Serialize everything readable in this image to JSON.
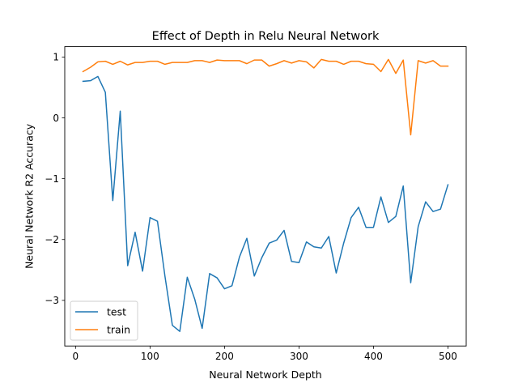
{
  "chart_data": {
    "type": "line",
    "title": "Effect of Depth in Relu Neural Network",
    "xlabel": "Neural Network Depth",
    "ylabel": "Neural Network R2 Accuracy",
    "xlim": [
      -14.5,
      524.5
    ],
    "ylim": [
      -3.75,
      1.17
    ],
    "xticks": [
      0,
      100,
      200,
      300,
      400,
      500
    ],
    "xtick_labels": [
      "0",
      "100",
      "200",
      "300",
      "400",
      "500"
    ],
    "yticks": [
      -3,
      -2,
      -1,
      0,
      1
    ],
    "ytick_labels": [
      "−3",
      "−2",
      "−1",
      "0",
      "1"
    ],
    "grid": false,
    "legend_position": "lower-left",
    "x": [
      10,
      20,
      30,
      40,
      50,
      60,
      70,
      80,
      90,
      100,
      110,
      120,
      130,
      140,
      150,
      160,
      170,
      180,
      190,
      200,
      210,
      220,
      230,
      240,
      250,
      260,
      270,
      280,
      290,
      300,
      310,
      320,
      330,
      340,
      350,
      360,
      370,
      380,
      390,
      400,
      410,
      420,
      430,
      440,
      450,
      460,
      470,
      480,
      490,
      500
    ],
    "series": [
      {
        "name": "test",
        "color": "#1f77b4",
        "values": [
          0.6,
          0.61,
          0.68,
          0.42,
          -1.36,
          0.11,
          -2.43,
          -1.88,
          -2.52,
          -1.64,
          -1.7,
          -2.6,
          -3.41,
          -3.51,
          -2.62,
          -2.98,
          -3.46,
          -2.56,
          -2.63,
          -2.81,
          -2.76,
          -2.29,
          -1.98,
          -2.6,
          -2.3,
          -2.06,
          -2.01,
          -1.85,
          -2.36,
          -2.38,
          -2.04,
          -2.12,
          -2.14,
          -1.95,
          -2.55,
          -2.06,
          -1.64,
          -1.47,
          -1.8,
          -1.8,
          -1.3,
          -1.72,
          -1.62,
          -1.12,
          -2.71,
          -1.79,
          -1.38,
          -1.54,
          -1.5,
          -1.1
        ]
      },
      {
        "name": "train",
        "color": "#ff7f0e",
        "values": [
          0.76,
          0.83,
          0.92,
          0.93,
          0.88,
          0.93,
          0.87,
          0.91,
          0.91,
          0.93,
          0.93,
          0.88,
          0.91,
          0.91,
          0.91,
          0.94,
          0.94,
          0.91,
          0.95,
          0.94,
          0.94,
          0.94,
          0.89,
          0.95,
          0.95,
          0.85,
          0.89,
          0.94,
          0.9,
          0.94,
          0.92,
          0.82,
          0.96,
          0.93,
          0.93,
          0.88,
          0.93,
          0.93,
          0.89,
          0.88,
          0.76,
          0.96,
          0.73,
          0.95,
          -0.28,
          0.94,
          0.9,
          0.94,
          0.85,
          0.85
        ]
      }
    ]
  }
}
